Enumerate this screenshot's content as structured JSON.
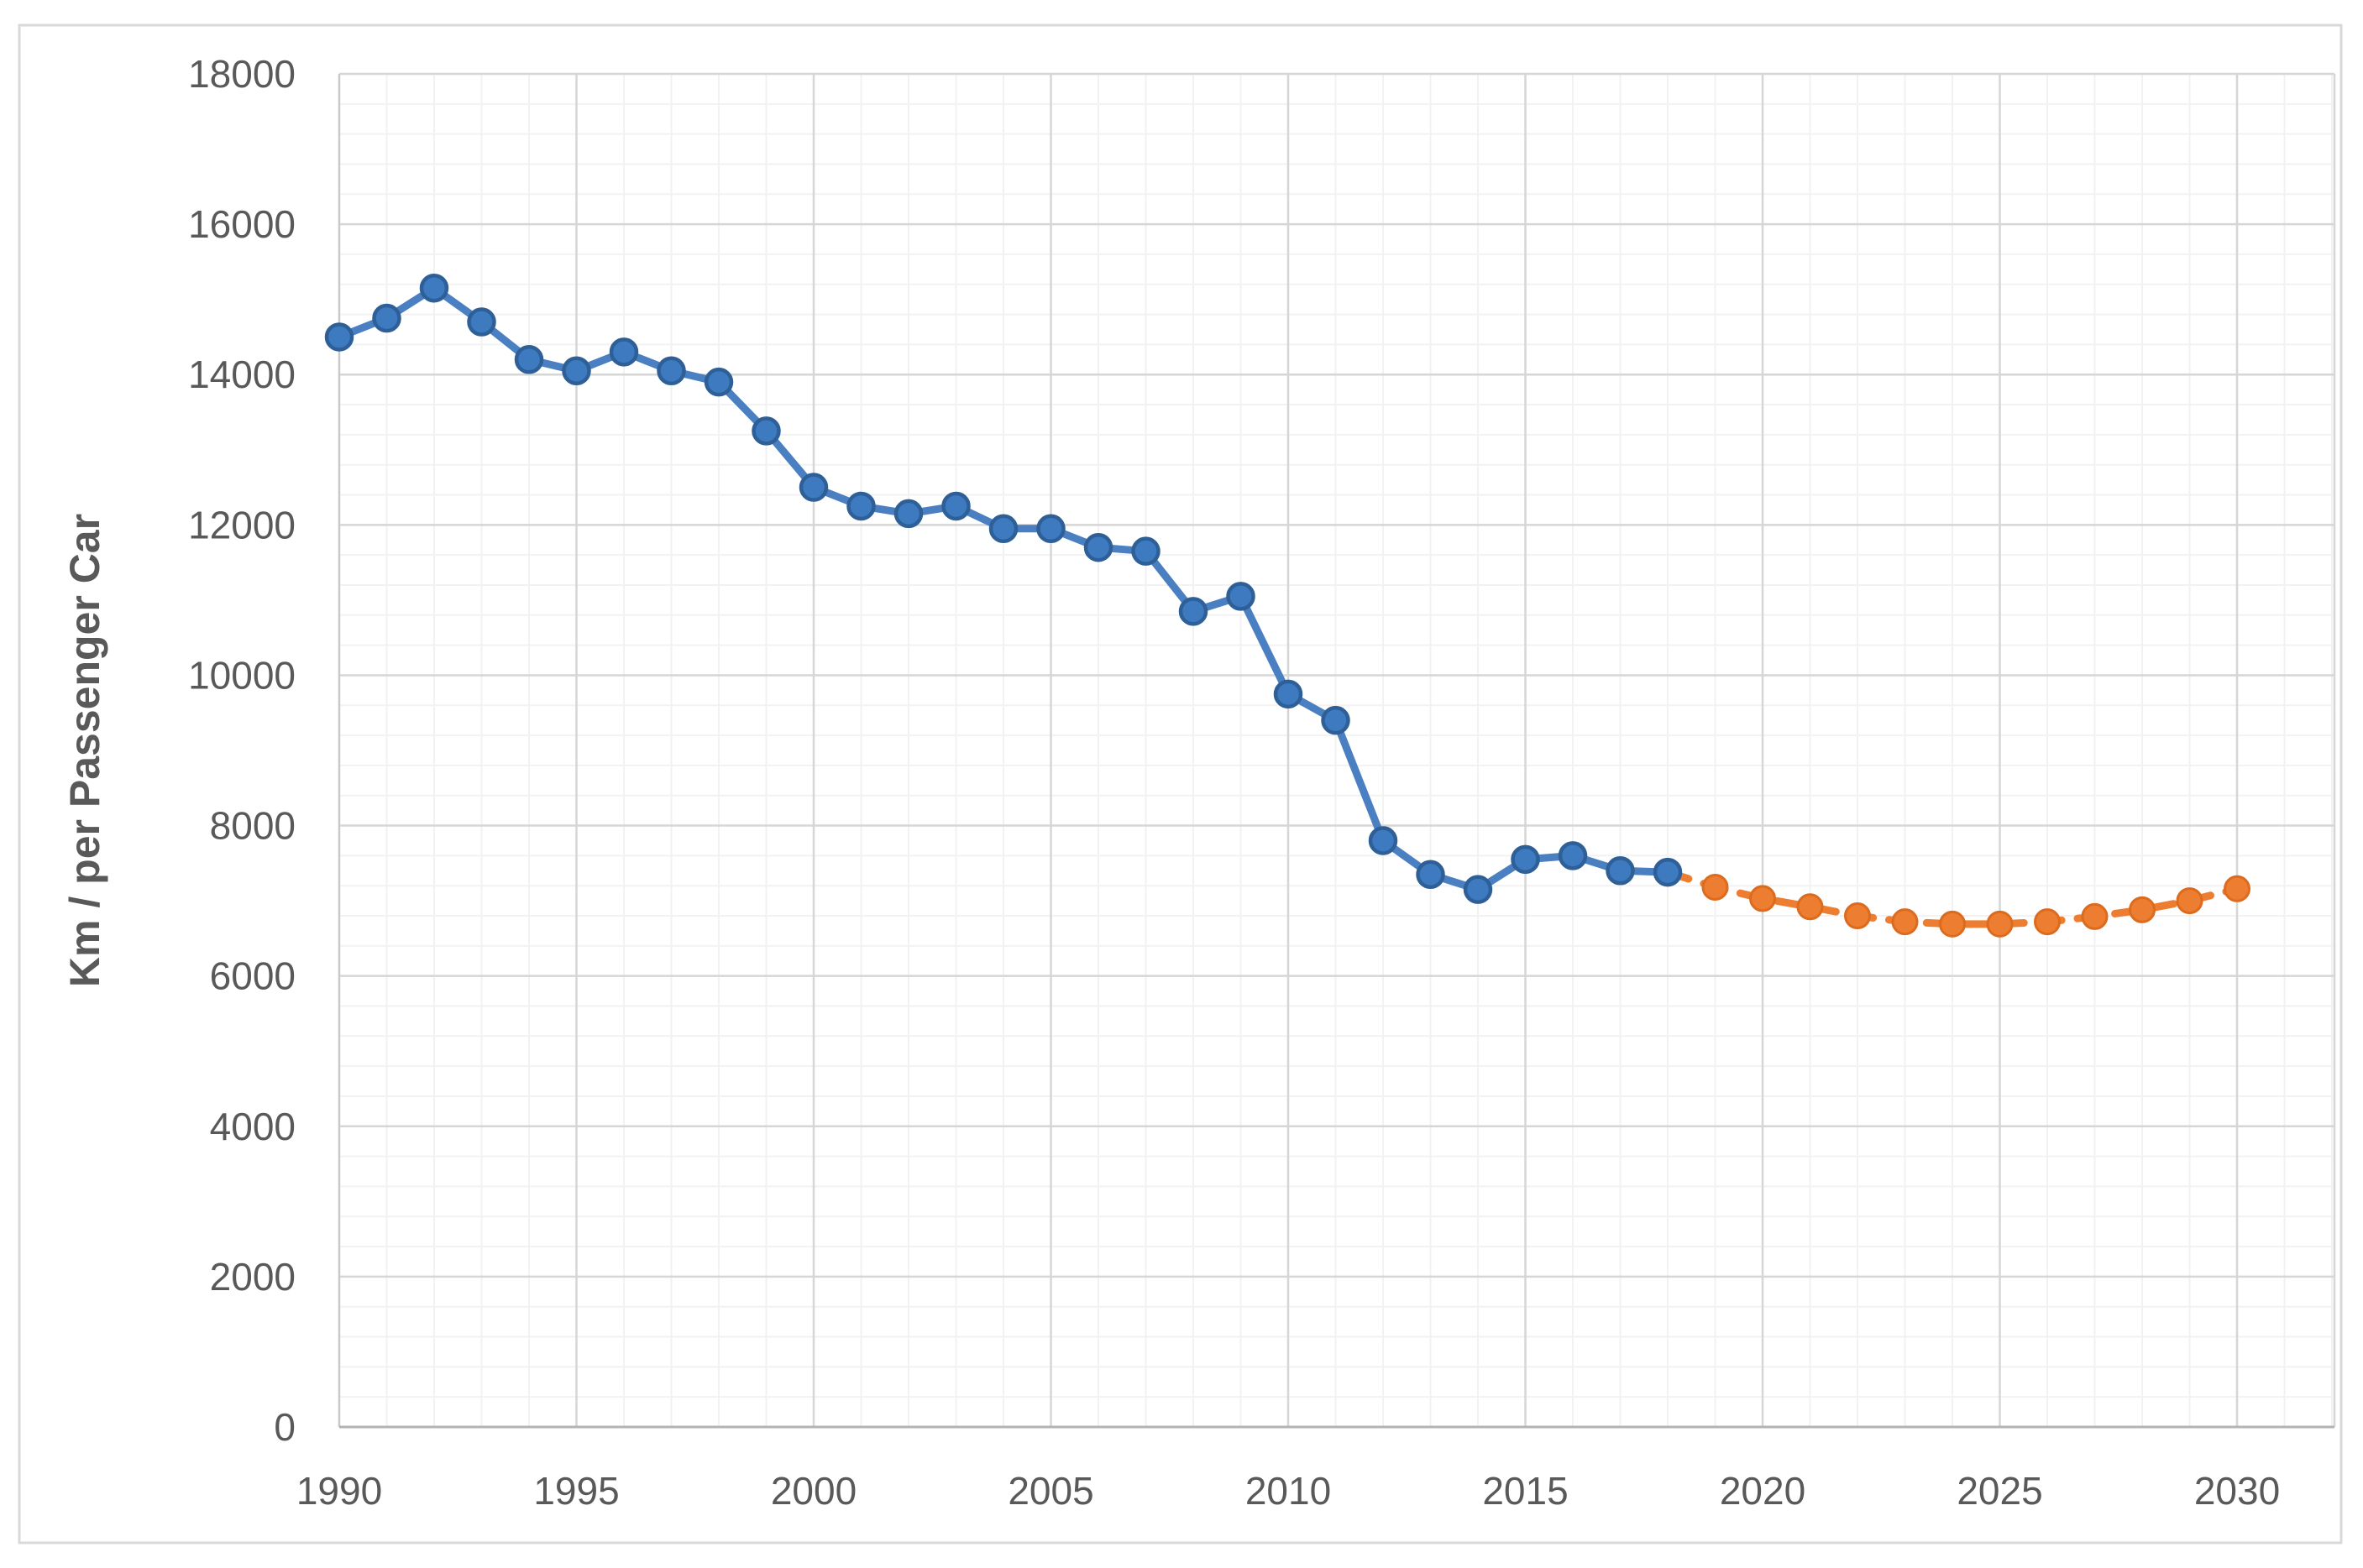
{
  "chart_data": {
    "type": "line",
    "title": "",
    "xlabel": "",
    "ylabel": "Km / per Passenger Car",
    "xlim": [
      1990,
      2032
    ],
    "ylim": [
      0,
      18000
    ],
    "x_major_unit": 5,
    "x_minor_unit": 1,
    "y_major_unit": 2000,
    "y_minor_unit": 400,
    "grid": "major-and-minor",
    "legend_position": "none",
    "x_tick_labels": [
      1990,
      1995,
      2000,
      2005,
      2010,
      2015,
      2020,
      2025,
      2030
    ],
    "y_tick_labels": [
      0,
      2000,
      4000,
      6000,
      8000,
      10000,
      12000,
      14000,
      16000,
      18000
    ],
    "series": [
      {
        "name": "blue-solid-history",
        "line_style": "solid",
        "marker": "circle",
        "color": "#4A80C2",
        "marker_fill": "#3D7AC0",
        "marker_stroke": "#2E5F96",
        "x": [
          1990,
          1991,
          1992,
          1993,
          1994,
          1995,
          1996,
          1997,
          1998,
          1999,
          2000,
          2001,
          2002,
          2003,
          2004,
          2005,
          2006,
          2007,
          2008,
          2009,
          2010,
          2011,
          2012,
          2013,
          2014,
          2015,
          2016,
          2017,
          2018
        ],
        "values": [
          14500,
          14750,
          15150,
          14700,
          14200,
          14050,
          14300,
          14050,
          13900,
          13250,
          12500,
          12250,
          12150,
          12250,
          11950,
          11950,
          11700,
          11650,
          10850,
          11050,
          9750,
          9400,
          7800,
          7350,
          7150,
          7550,
          7600,
          7400,
          7380
        ]
      },
      {
        "name": "orange-dashed-forecast",
        "line_style": "dashed",
        "marker": "circle",
        "color": "#ED7D31",
        "marker_fill": "#ED7D31",
        "marker_stroke": "#DC6B1E",
        "x": [
          2018,
          2019,
          2020,
          2021,
          2022,
          2023,
          2024,
          2025,
          2026,
          2027,
          2028,
          2029,
          2030
        ],
        "values": [
          7380,
          7180,
          7030,
          6920,
          6800,
          6720,
          6690,
          6690,
          6720,
          6790,
          6880,
          7000,
          7160
        ]
      }
    ]
  },
  "colors": {
    "chart_border": "#D9D9D9",
    "plot_major_grid": "#D6D6D6",
    "plot_minor_grid": "#F2F2F2",
    "axis_line": "#B3B3B3",
    "plot_left_edge": "#C9C9C9",
    "tick_label": "#595959",
    "axis_title": "#595959",
    "background": "#FFFFFF"
  }
}
